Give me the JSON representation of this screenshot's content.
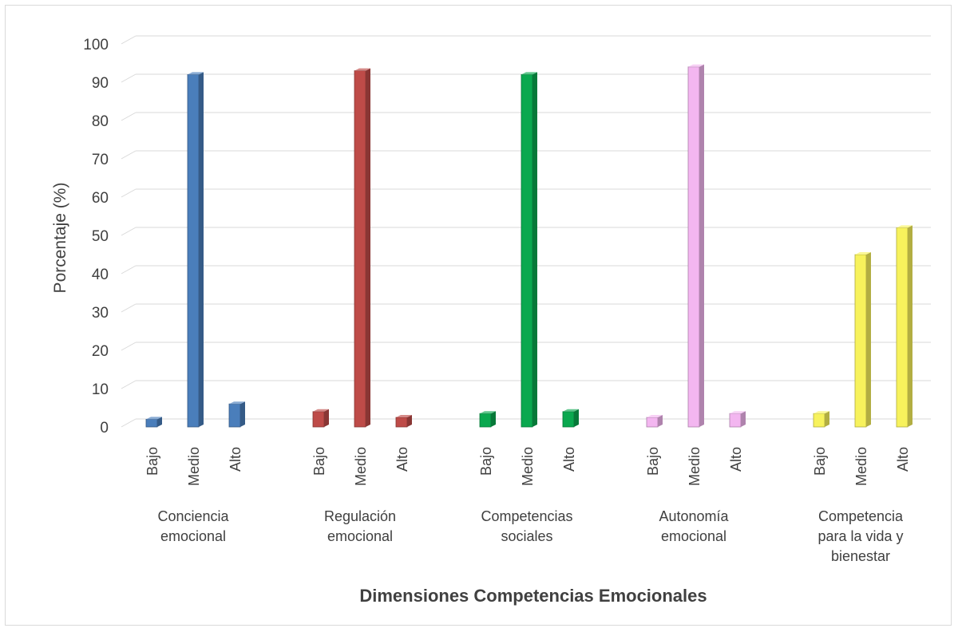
{
  "chart_data": {
    "type": "bar",
    "title": "",
    "xlabel": "Dimensiones Competencias Emocionales",
    "ylabel": "Porcentaje (%)",
    "ylim": [
      0,
      100
    ],
    "yticks": [
      "0",
      "10",
      "20",
      "30",
      "40",
      "50",
      "60",
      "70",
      "80",
      "90",
      "100"
    ],
    "grid": true,
    "legend": "none",
    "levels": [
      "Bajo",
      "Medio",
      "Alto"
    ],
    "groups": [
      {
        "label": [
          "Conciencia",
          "emocional"
        ],
        "color": "#4a7ebb",
        "values": [
          2,
          92,
          6
        ]
      },
      {
        "label": [
          "Regulación",
          "emocional"
        ],
        "color": "#be4b48",
        "values": [
          4,
          93,
          2.5
        ]
      },
      {
        "label": [
          "Competencias",
          "sociales"
        ],
        "color": "#0aa84f",
        "values": [
          3.5,
          92,
          4
        ]
      },
      {
        "label": [
          "Autonomía",
          "emocional"
        ],
        "color": "#f3b6f0",
        "values": [
          2.5,
          94,
          3.5
        ]
      },
      {
        "label": [
          "Competencia",
          "para la vida y",
          "bienestar"
        ],
        "color": "#f7f25c",
        "values": [
          3.5,
          45,
          52
        ]
      }
    ]
  }
}
